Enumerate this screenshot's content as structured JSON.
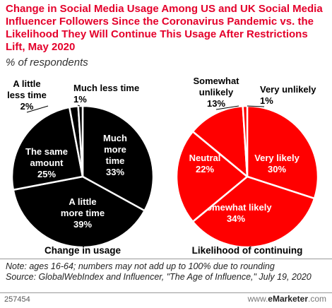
{
  "title": "Change in Social Media Usage Among US and UK Social Media Influencer Followers Since the Coronavirus Pandemic vs. the Likelihood They Will Continue This Usage After Restrictions Lift, May 2020",
  "subtitle": "% of respondents",
  "note": "Note: ages 16-64; numbers may not add up to 100% due to rounding",
  "source": "Source: GlobalWebIndex and Influencer, \"The Age of Influence,\" July 19, 2020",
  "chart_id": "257454",
  "brand": {
    "prefix": "www.",
    "name": "eMarketer",
    "suffix": ".com"
  },
  "colors": {
    "usage": "#000000",
    "likelihood": "#ff0000",
    "edge": "#ffffff",
    "title": "#e4002b"
  },
  "chart_data": [
    {
      "type": "pie",
      "title": "Change in usage",
      "unit": "%",
      "slices": [
        {
          "label": "Much more time",
          "value": 33
        },
        {
          "label": "A little more time",
          "value": 39
        },
        {
          "label": "The same amount",
          "value": 25
        },
        {
          "label": "A little less time",
          "value": 2
        },
        {
          "label": "Much less time",
          "value": 1
        }
      ]
    },
    {
      "type": "pie",
      "title": "Likelihood of continuing",
      "unit": "%",
      "slices": [
        {
          "label": "Very likely",
          "value": 30
        },
        {
          "label": "Somewhat likely",
          "value": 34
        },
        {
          "label": "Neutral",
          "value": 22
        },
        {
          "label": "Somewhat unlikely",
          "value": 13
        },
        {
          "label": "Very unlikely",
          "value": 1
        }
      ]
    }
  ]
}
